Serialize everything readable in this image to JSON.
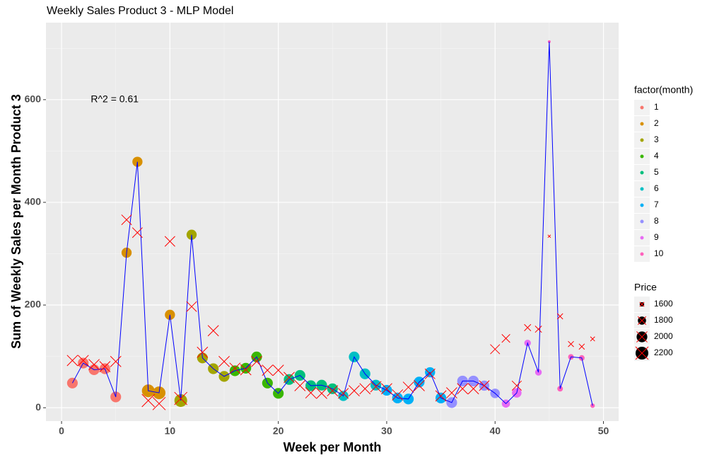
{
  "chart_data": {
    "type": "scatter",
    "title": "Weekly Sales Product 3 - MLP Model",
    "x_label": "Week per Month",
    "y_label": "Sum of Weekly Sales per Month Product 3",
    "annotation": {
      "text": "R^2 = 0.61",
      "x": 4.9,
      "y": 600
    },
    "x": [
      1,
      2,
      3,
      4,
      5,
      6,
      7,
      8,
      9,
      10,
      11,
      12,
      13,
      14,
      15,
      16,
      17,
      18,
      19,
      20,
      21,
      22,
      23,
      24,
      25,
      26,
      27,
      28,
      29,
      30,
      31,
      32,
      33,
      34,
      35,
      36,
      37,
      38,
      39,
      40,
      41,
      42,
      43,
      44,
      45,
      46,
      47,
      48,
      49
    ],
    "values": [
      48,
      87,
      74,
      76,
      21,
      302,
      479,
      33,
      29,
      181,
      14,
      337,
      97,
      76,
      61,
      72,
      77,
      99,
      48,
      28,
      55,
      63,
      43,
      44,
      37,
      23,
      99,
      66,
      44,
      34,
      19,
      17,
      50,
      69,
      19,
      10,
      52,
      52,
      43,
      28,
      8,
      29,
      126,
      69,
      713,
      37,
      99,
      97,
      4
    ],
    "predicted": [
      92,
      92,
      84,
      80,
      90,
      366,
      341,
      14,
      8,
      324,
      18,
      197,
      108,
      150,
      90,
      77,
      74,
      90,
      73,
      73,
      59,
      43,
      29,
      28,
      33,
      28,
      33,
      37,
      41,
      37,
      25,
      40,
      43,
      66,
      23,
      29,
      37,
      37,
      43,
      114,
      135,
      43,
      156,
      153,
      334,
      178,
      124,
      119,
      134
    ],
    "month": [
      1,
      1,
      1,
      1,
      1,
      2,
      2,
      2,
      2,
      2,
      3,
      3,
      3,
      3,
      3,
      4,
      4,
      4,
      4,
      4,
      5,
      5,
      5,
      5,
      5,
      6,
      6,
      6,
      6,
      7,
      7,
      7,
      7,
      7,
      7,
      8,
      8,
      8,
      8,
      8,
      9,
      9,
      9,
      9,
      10,
      10,
      10,
      10,
      10
    ],
    "price": [
      2000,
      2000,
      2000,
      2000,
      2000,
      1950,
      1950,
      2200,
      2200,
      1950,
      2200,
      1950,
      2000,
      2000,
      2000,
      2000,
      2000,
      2000,
      2000,
      2000,
      2000,
      2000,
      2000,
      2000,
      2000,
      1950,
      2000,
      2000,
      2000,
      2000,
      2000,
      2000,
      2000,
      1950,
      2000,
      2000,
      2000,
      2000,
      1950,
      1900,
      1800,
      1900,
      1700,
      1700,
      1550,
      1650,
      1650,
      1650,
      1600
    ],
    "line_color": "#0000ff",
    "predicted_color": "#ff0000",
    "xlim": [
      -1.44,
      51.4
    ],
    "ylim": [
      -26,
      750
    ],
    "xticks": [
      0,
      10,
      20,
      30,
      40,
      50
    ],
    "yticks": [
      0,
      200,
      400,
      600
    ],
    "grid": true,
    "color_legend": {
      "title": "factor(month)",
      "levels": [
        1,
        2,
        3,
        4,
        5,
        6,
        7,
        8,
        9,
        10
      ],
      "colors": [
        "#F8766D",
        "#D89000",
        "#A3A500",
        "#39B600",
        "#00BF7D",
        "#00BFC4",
        "#00B0F6",
        "#9590FF",
        "#E76BF3",
        "#FF62BC"
      ]
    },
    "size_legend": {
      "title": "Price",
      "values": [
        1600,
        1800,
        2000,
        2200
      ]
    }
  }
}
